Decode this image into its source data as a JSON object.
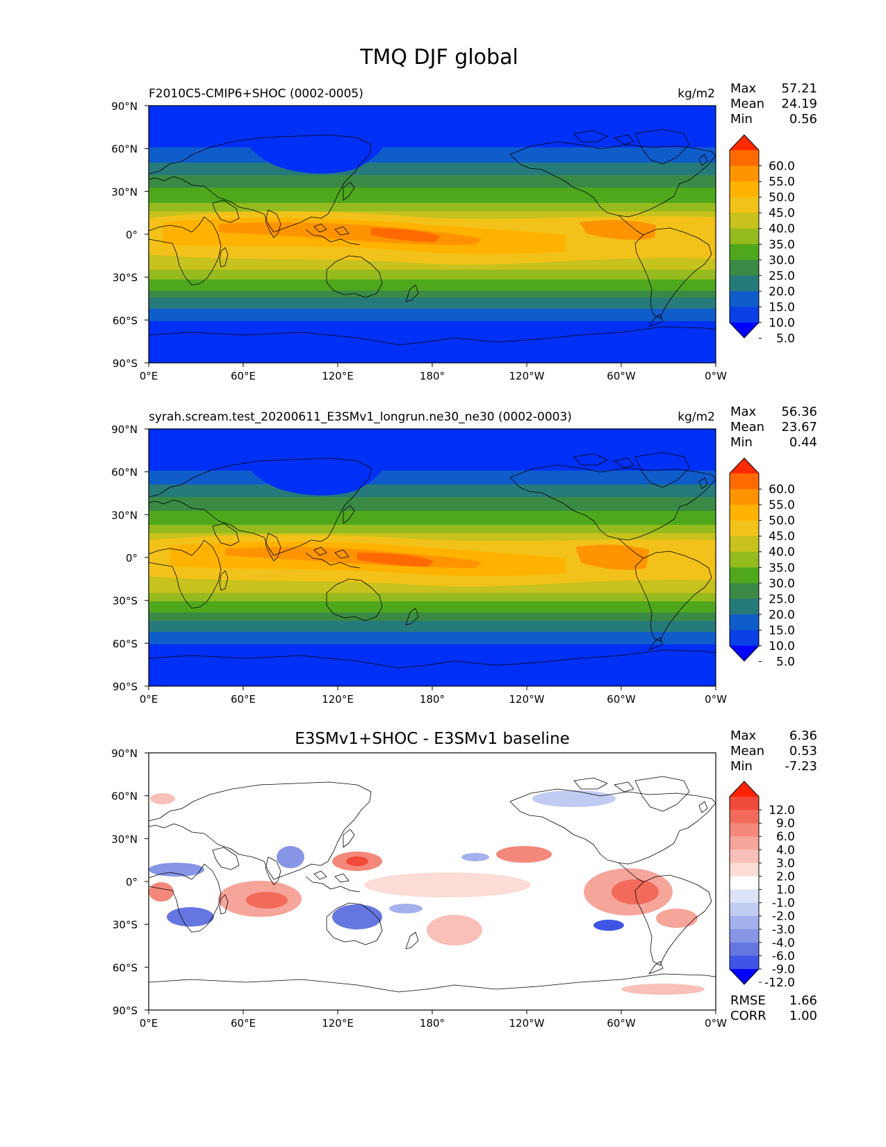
{
  "figure": {
    "title": "TMQ DJF global"
  },
  "panels": [
    {
      "id": "model",
      "left_title": "F2010C5-CMIP6+SHOC (0002-0005)",
      "center_title": "",
      "units": "kg/m2",
      "stats": [
        {
          "label": "Max",
          "value": "57.21"
        },
        {
          "label": "Mean",
          "value": "24.19"
        },
        {
          "label": "Min",
          "value": "0.56"
        }
      ],
      "colorbar": {
        "ticks": [
          "60.0",
          "55.0",
          "50.0",
          "45.0",
          "40.0",
          "35.0",
          "30.0",
          "25.0",
          "20.0",
          "15.0",
          "10.0",
          "5.0"
        ],
        "colors": [
          "#ff2a00",
          "#ff6a00",
          "#ff9400",
          "#ffb300",
          "#f2c21a",
          "#c7c21d",
          "#96bb1e",
          "#4fa81c",
          "#3a8a45",
          "#277a7a",
          "#0f5ccb",
          "#0a3fe6",
          "#0000ff"
        ]
      },
      "extra_stats": []
    },
    {
      "id": "reference",
      "left_title": "syrah.scream.test_20200611_E3SMv1_longrun.ne30_ne30 (0002-0003)",
      "center_title": "",
      "units": "kg/m2",
      "stats": [
        {
          "label": "Max",
          "value": "56.36"
        },
        {
          "label": "Mean",
          "value": "23.67"
        },
        {
          "label": "Min",
          "value": "0.44"
        }
      ],
      "colorbar": {
        "ticks": [
          "60.0",
          "55.0",
          "50.0",
          "45.0",
          "40.0",
          "35.0",
          "30.0",
          "25.0",
          "20.0",
          "15.0",
          "10.0",
          "5.0"
        ],
        "colors": [
          "#ff2a00",
          "#ff6a00",
          "#ff9400",
          "#ffb300",
          "#f2c21a",
          "#c7c21d",
          "#96bb1e",
          "#4fa81c",
          "#3a8a45",
          "#277a7a",
          "#0f5ccb",
          "#0a3fe6",
          "#0000ff"
        ]
      },
      "extra_stats": []
    },
    {
      "id": "difference",
      "left_title": "",
      "center_title": "E3SMv1+SHOC - E3SMv1 baseline",
      "units": "",
      "stats": [
        {
          "label": "Max",
          "value": "6.36"
        },
        {
          "label": "Mean",
          "value": "0.53"
        },
        {
          "label": "Min",
          "value": "-7.23"
        }
      ],
      "colorbar": {
        "ticks": [
          "12.0",
          "9.0",
          "6.0",
          "4.0",
          "3.0",
          "2.0",
          "1.0",
          "-1.0",
          "-2.0",
          "-3.0",
          "-4.0",
          "-6.0",
          "-9.0",
          "-12.0"
        ],
        "colors": [
          "#ff2200",
          "#f04a3a",
          "#f26a5a",
          "#f4887a",
          "#f6a59a",
          "#f8c0b8",
          "#fbdcd6",
          "#ffffff",
          "#dde3f8",
          "#c2cbf2",
          "#a4b1ec",
          "#8795e6",
          "#6676e0",
          "#3e55e6",
          "#0000ff"
        ]
      },
      "extra_stats": [
        {
          "label": "RMSE",
          "value": "1.66"
        },
        {
          "label": "CORR",
          "value": "1.00"
        }
      ]
    }
  ],
  "axes": {
    "x_ticks": [
      "0°E",
      "60°E",
      "120°E",
      "180°",
      "120°W",
      "60°W",
      "0°W"
    ],
    "y_ticks": [
      "90°N",
      "60°N",
      "30°N",
      "0°",
      "30°S",
      "60°S",
      "90°S"
    ]
  },
  "icons": {
    "coastline": "coastline-outline-icon"
  }
}
